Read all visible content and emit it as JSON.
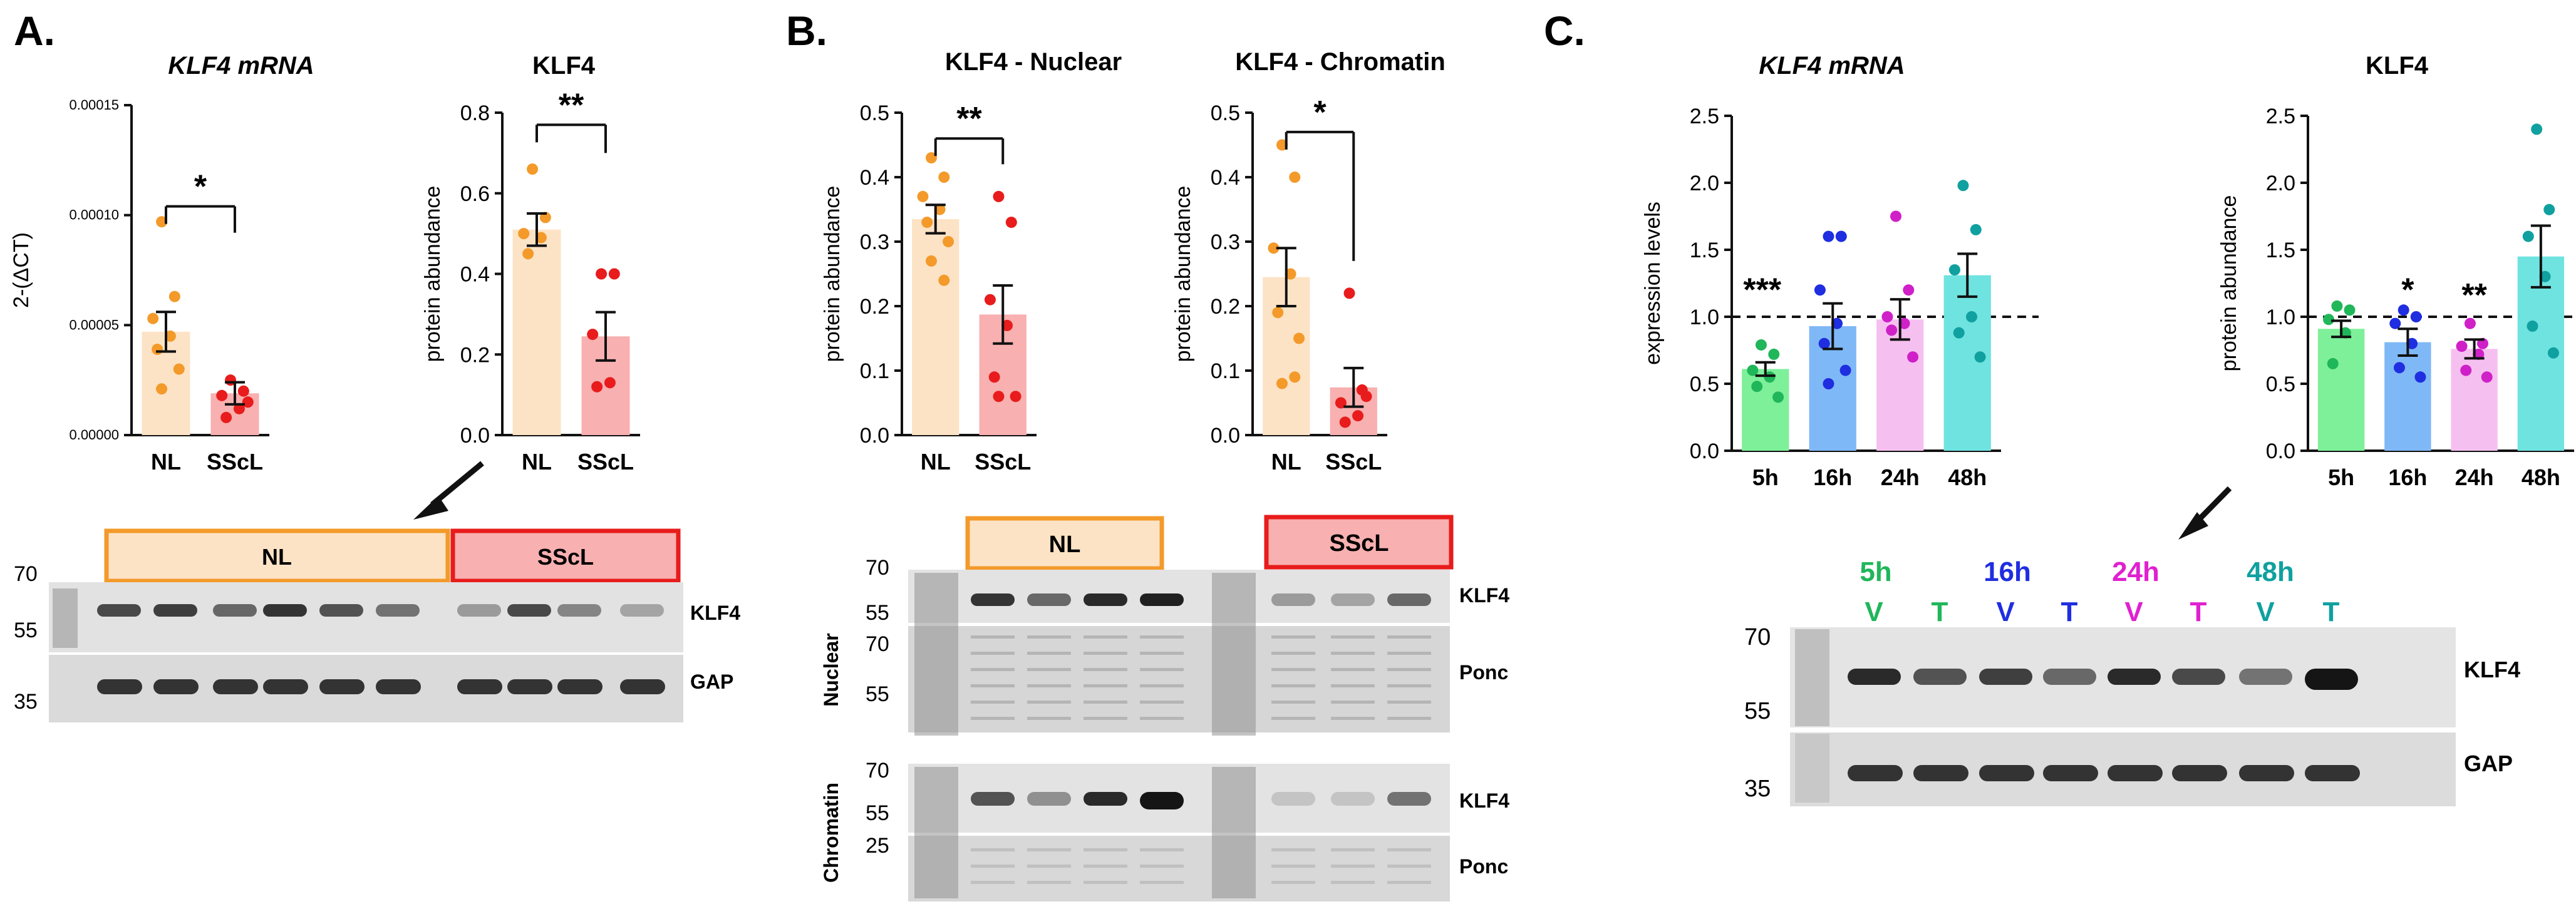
{
  "panels": {
    "A": {
      "letter": "A.",
      "mrna_title": "KLF4 mRNA",
      "protein_title": "KLF4",
      "blot": {
        "groups": [
          {
            "label": "NL"
          },
          {
            "label": "SScL"
          }
        ],
        "markers": [
          "70",
          "55",
          "35"
        ],
        "row_labels": [
          "KLF4",
          "GAP"
        ]
      }
    },
    "B": {
      "letter": "B.",
      "nuclear_title": "KLF4 - Nuclear",
      "chromatin_title": "KLF4 - Chromatin",
      "blot": {
        "groups": [
          {
            "label": "NL"
          },
          {
            "label": "SScL"
          }
        ],
        "side_labels": [
          "Nuclear",
          "Chromatin"
        ],
        "nuclear_markers": [
          "70",
          "55",
          "70",
          "55"
        ],
        "chromatin_markers": [
          "70",
          "55",
          "25"
        ],
        "row_labels": [
          "KLF4",
          "Ponc",
          "KLF4",
          "Ponc"
        ]
      }
    },
    "C": {
      "letter": "C.",
      "mrna_title": "KLF4 mRNA",
      "protein_title": "KLF4",
      "blot": {
        "times": [
          {
            "label": "5h",
            "color": "#20b65a"
          },
          {
            "label": "16h",
            "color": "#1f2ee0"
          },
          {
            "label": "24h",
            "color": "#e020d0"
          },
          {
            "label": "48h",
            "color": "#10a0a0"
          }
        ],
        "lanes": [
          "V",
          "T",
          "V",
          "T",
          "V",
          "T",
          "V",
          "T"
        ],
        "markers": [
          "70",
          "55",
          "35"
        ],
        "row_labels": [
          "KLF4",
          "GAP"
        ]
      }
    }
  },
  "colors": {
    "nl_fill": "#fde3c6",
    "nl_point": "#f39a2a",
    "sscl_fill": "#f8b0b0",
    "sscl_point": "#e81c1c",
    "nl_box": "#f39a2a",
    "sscl_box": "#e81c1c",
    "c_fills": [
      "#7ef09a",
      "#7fb8f7",
      "#f5c0f0",
      "#6fe3e0"
    ],
    "c_points": [
      "#20b65a",
      "#1f2ee0",
      "#d020c8",
      "#10a0a0"
    ]
  },
  "chart_data": [
    {
      "id": "A1",
      "type": "bar",
      "title": "KLF4 mRNA",
      "ylabel": "2-(ΔCT)",
      "categories": [
        "NL",
        "SScL"
      ],
      "values": [
        4.7e-05,
        1.9e-05
      ],
      "sem": [
        9e-06,
        5e-06
      ],
      "ylim": [
        0,
        0.00015
      ],
      "yticks": [
        "0.00000",
        "0.00005",
        "0.00010",
        "0.00015"
      ],
      "points": [
        [
          9.7e-05,
          6.3e-05,
          5.3e-05,
          4.5e-05,
          3.9e-05,
          3e-05,
          2.1e-05
        ],
        [
          2.5e-05,
          2e-05,
          1.8e-05,
          1.2e-05,
          8e-06,
          1.5e-05
        ]
      ],
      "significance": "*"
    },
    {
      "id": "A2",
      "type": "bar",
      "title": "KLF4",
      "ylabel": "protein abundance",
      "categories": [
        "NL",
        "SScL"
      ],
      "values": [
        0.51,
        0.245
      ],
      "sem": [
        0.04,
        0.06
      ],
      "ylim": [
        0,
        0.8
      ],
      "yticks": [
        "0.0",
        "0.2",
        "0.4",
        "0.6",
        "0.8"
      ],
      "points": [
        [
          0.66,
          0.54,
          0.5,
          0.49,
          0.45
        ],
        [
          0.4,
          0.4,
          0.25,
          0.13,
          0.12
        ]
      ],
      "significance": "**"
    },
    {
      "id": "B1",
      "type": "bar",
      "title": "KLF4 - Nuclear",
      "ylabel": "protein abundance",
      "categories": [
        "NL",
        "SScL"
      ],
      "values": [
        0.335,
        0.187
      ],
      "sem": [
        0.022,
        0.045
      ],
      "ylim": [
        0,
        0.5
      ],
      "yticks": [
        "0.0",
        "0.1",
        "0.2",
        "0.3",
        "0.4",
        "0.5"
      ],
      "points": [
        [
          0.43,
          0.4,
          0.37,
          0.35,
          0.33,
          0.3,
          0.27,
          0.24
        ],
        [
          0.37,
          0.33,
          0.21,
          0.17,
          0.09,
          0.06,
          0.06
        ]
      ],
      "significance": "**"
    },
    {
      "id": "B2",
      "type": "bar",
      "title": "KLF4 - Chromatin",
      "ylabel": "protein abundance",
      "categories": [
        "NL",
        "SScL"
      ],
      "values": [
        0.245,
        0.074
      ],
      "sem": [
        0.045,
        0.03
      ],
      "ylim": [
        0,
        0.5
      ],
      "yticks": [
        "0.0",
        "0.1",
        "0.2",
        "0.3",
        "0.4",
        "0.5"
      ],
      "points": [
        [
          0.45,
          0.4,
          0.29,
          0.25,
          0.19,
          0.15,
          0.08,
          0.09
        ],
        [
          0.22,
          0.07,
          0.05,
          0.03,
          0.02,
          0.06
        ]
      ],
      "significance": "*"
    },
    {
      "id": "C1",
      "type": "bar",
      "title": "KLF4 mRNA",
      "ylabel": "expression levels",
      "categories": [
        "5h",
        "16h",
        "24h",
        "48h"
      ],
      "values": [
        0.61,
        0.93,
        0.98,
        1.31
      ],
      "sem": [
        0.05,
        0.17,
        0.15,
        0.16
      ],
      "ylim": [
        0,
        2.5
      ],
      "yticks": [
        "0.0",
        "0.5",
        "1.0",
        "1.5",
        "2.0",
        "2.5"
      ],
      "reference_line": 1.0,
      "points": [
        [
          0.79,
          0.72,
          0.6,
          0.55,
          0.48,
          0.4
        ],
        [
          1.6,
          1.6,
          1.2,
          0.95,
          0.8,
          0.6,
          0.5
        ],
        [
          1.75,
          1.2,
          1.0,
          0.95,
          0.9,
          0.7
        ],
        [
          1.98,
          1.65,
          1.35,
          1.0,
          0.88,
          0.7
        ]
      ],
      "significance_labels": [
        "***",
        "",
        "",
        ""
      ]
    },
    {
      "id": "C2",
      "type": "bar",
      "title": "KLF4",
      "ylabel": "protein abundance",
      "categories": [
        "5h",
        "16h",
        "24h",
        "48h"
      ],
      "values": [
        0.91,
        0.81,
        0.76,
        1.45
      ],
      "sem": [
        0.06,
        0.1,
        0.07,
        0.23
      ],
      "ylim": [
        0,
        2.5
      ],
      "yticks": [
        "0.0",
        "0.5",
        "1.0",
        "1.5",
        "2.0",
        "2.5"
      ],
      "reference_line": 1.0,
      "points": [
        [
          1.08,
          1.05,
          0.98,
          0.88,
          0.65
        ],
        [
          1.05,
          1.0,
          0.95,
          0.8,
          0.62,
          0.55
        ],
        [
          0.95,
          0.8,
          0.78,
          0.72,
          0.6,
          0.55
        ],
        [
          2.4,
          1.8,
          1.6,
          1.3,
          0.93,
          0.73
        ]
      ],
      "significance_labels": [
        "",
        "*",
        "**",
        ""
      ]
    }
  ]
}
